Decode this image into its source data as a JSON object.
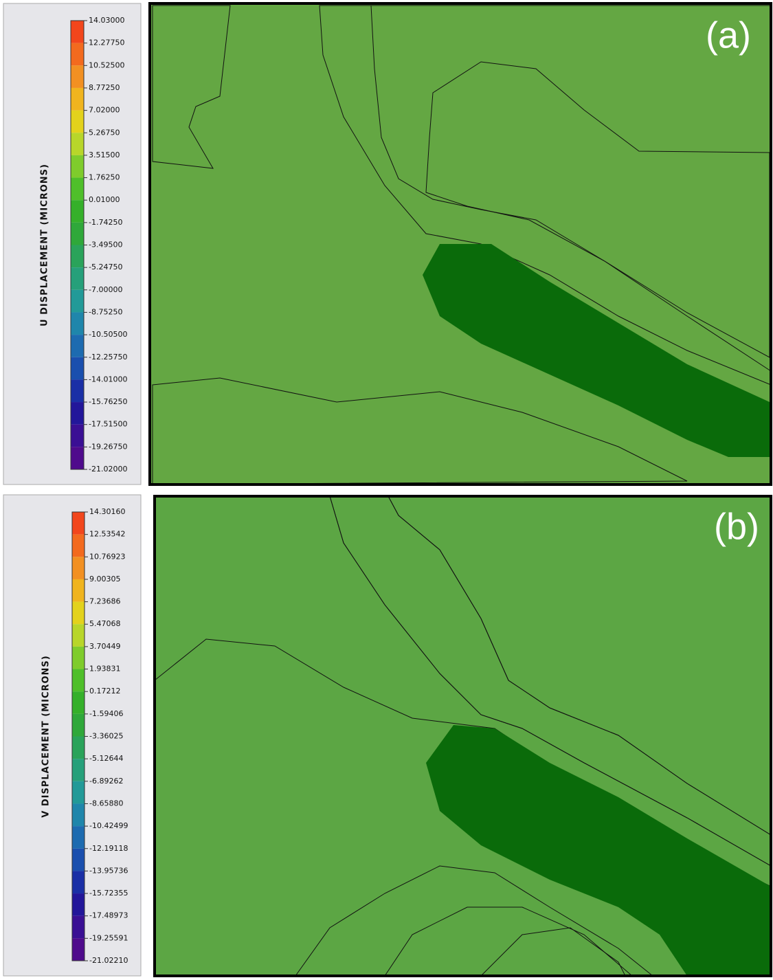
{
  "chart_data": [
    {
      "type": "contour",
      "label": "(a)",
      "colorbar_label": "U DISPLACEMENT (MICRONS)",
      "clim": [
        -21.02,
        14.03
      ],
      "cticks": [
        {
          "value": 14.03,
          "label": "14.03000"
        },
        {
          "value": 12.2775,
          "label": "12.27750"
        },
        {
          "value": 10.525,
          "label": "10.52500"
        },
        {
          "value": 8.7725,
          "label": "8.77250"
        },
        {
          "value": 7.02,
          "label": "7.02000"
        },
        {
          "value": 5.2675,
          "label": "5.26750"
        },
        {
          "value": 3.515,
          "label": "3.51500"
        },
        {
          "value": 1.7625,
          "label": "1.76250"
        },
        {
          "value": 0.01,
          "label": "0.01000"
        },
        {
          "value": -1.7425,
          "label": "-1.74250"
        },
        {
          "value": -3.495,
          "label": "-3.49500"
        },
        {
          "value": -5.2475,
          "label": "-5.24750"
        },
        {
          "value": -7,
          "label": "-7.00000"
        },
        {
          "value": -8.7525,
          "label": "-8.75250"
        },
        {
          "value": -10.505,
          "label": "-10.50500"
        },
        {
          "value": -12.2575,
          "label": "-12.25750"
        },
        {
          "value": -14.01,
          "label": "-14.01000"
        },
        {
          "value": -15.7625,
          "label": "-15.76250"
        },
        {
          "value": -17.515,
          "label": "-17.51500"
        },
        {
          "value": -19.2675,
          "label": "-19.26750"
        },
        {
          "value": -21.02,
          "label": "-21.02000"
        }
      ],
      "colormap": [
        "#f2461c",
        "#f36a1e",
        "#f29022",
        "#f0b41e",
        "#e3d21c",
        "#b8d62a",
        "#7fcc2c",
        "#4fbf2a",
        "#35b02a",
        "#2fa83a",
        "#2aa35a",
        "#26a07a",
        "#229a98",
        "#1f86ab",
        "#1d6bb0",
        "#1a4fae",
        "#1a2fa6",
        "#22169a",
        "#3a0f94",
        "#4f0b8c"
      ]
    },
    {
      "type": "contour",
      "label": "(b)",
      "colorbar_label": "V DISPLACEMENT (MICRONS)",
      "clim": [
        -21.0221,
        14.3016
      ],
      "cticks": [
        {
          "value": 14.3016,
          "label": "14.30160"
        },
        {
          "value": 12.53542,
          "label": "12.53542"
        },
        {
          "value": 10.76923,
          "label": "10.76923"
        },
        {
          "value": 9.00305,
          "label": "9.00305"
        },
        {
          "value": 7.23686,
          "label": "7.23686"
        },
        {
          "value": 5.47068,
          "label": "5.47068"
        },
        {
          "value": 3.70449,
          "label": "3.70449"
        },
        {
          "value": 1.93831,
          "label": "1.93831"
        },
        {
          "value": 0.17212,
          "label": "0.17212"
        },
        {
          "value": -1.59406,
          "label": "-1.59406"
        },
        {
          "value": -3.36025,
          "label": "-3.36025"
        },
        {
          "value": -5.12644,
          "label": "-5.12644"
        },
        {
          "value": -6.89262,
          "label": "-6.89262"
        },
        {
          "value": -8.6588,
          "label": "-8.65880"
        },
        {
          "value": -10.42499,
          "label": "-10.42499"
        },
        {
          "value": -12.19118,
          "label": "-12.19118"
        },
        {
          "value": -13.95736,
          "label": "-13.95736"
        },
        {
          "value": -15.72355,
          "label": "-15.72355"
        },
        {
          "value": -17.48973,
          "label": "-17.48973"
        },
        {
          "value": -19.25591,
          "label": "-19.25591"
        },
        {
          "value": -21.0221,
          "label": "-21.02210"
        }
      ],
      "colormap": [
        "#f2461c",
        "#f36a1e",
        "#f29022",
        "#f0b41e",
        "#e3d21c",
        "#b8d62a",
        "#7fcc2c",
        "#4fbf2a",
        "#35b02a",
        "#2fa83a",
        "#2aa35a",
        "#26a07a",
        "#229a98",
        "#1f86ab",
        "#1d6bb0",
        "#1a4fae",
        "#1a2fa6",
        "#22169a",
        "#3a0f94",
        "#4f0b8c"
      ]
    }
  ]
}
